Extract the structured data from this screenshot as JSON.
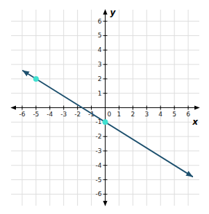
{
  "chart_data": {
    "type": "line",
    "xlabel": "x",
    "ylabel": "y",
    "xlim": [
      -6.8,
      6.8
    ],
    "ylim": [
      -6.8,
      6.8
    ],
    "xticks": [
      -6,
      -5,
      -4,
      -3,
      -2,
      -1,
      0,
      1,
      2,
      3,
      4,
      5,
      6
    ],
    "yticks": [
      -6,
      -5,
      -4,
      -3,
      -2,
      -1,
      1,
      2,
      3,
      4,
      5,
      6
    ],
    "grid": true,
    "series": [
      {
        "type": "line",
        "color": "#1d506e",
        "x": [
          -5.95,
          6.3
        ],
        "values": [
          2.57,
          -4.78
        ]
      },
      {
        "type": "scatter",
        "color": "#40e0d0",
        "x": [
          -5,
          0
        ],
        "values": [
          2,
          -1
        ]
      }
    ]
  }
}
